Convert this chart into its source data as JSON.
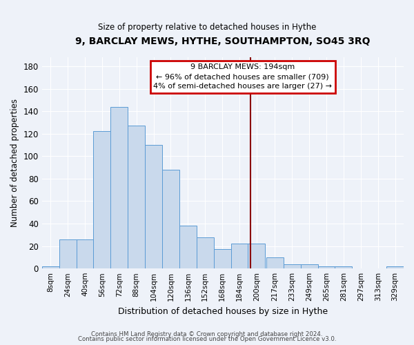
{
  "title": "9, BARCLAY MEWS, HYTHE, SOUTHAMPTON, SO45 3RQ",
  "subtitle": "Size of property relative to detached houses in Hythe",
  "xlabel": "Distribution of detached houses by size in Hythe",
  "ylabel": "Number of detached properties",
  "bar_labels": [
    "8sqm",
    "24sqm",
    "40sqm",
    "56sqm",
    "72sqm",
    "88sqm",
    "104sqm",
    "120sqm",
    "136sqm",
    "152sqm",
    "168sqm",
    "184sqm",
    "200sqm",
    "217sqm",
    "233sqm",
    "249sqm",
    "265sqm",
    "281sqm",
    "297sqm",
    "313sqm",
    "329sqm"
  ],
  "bar_values": [
    2,
    26,
    26,
    122,
    144,
    127,
    110,
    88,
    38,
    28,
    17,
    22,
    22,
    10,
    4,
    4,
    2,
    2,
    0,
    0,
    2
  ],
  "bar_color": "#c9d9ec",
  "bar_edge_color": "#5b9bd5",
  "ylim": [
    0,
    188
  ],
  "yticks": [
    0,
    20,
    40,
    60,
    80,
    100,
    120,
    140,
    160,
    180
  ],
  "vline_x": 194,
  "vline_color": "#8b0000",
  "annotation_title": "9 BARCLAY MEWS: 194sqm",
  "annotation_line1": "← 96% of detached houses are smaller (709)",
  "annotation_line2": "4% of semi-detached houses are larger (27) →",
  "annotation_box_color": "#cc0000",
  "footer1": "Contains HM Land Registry data © Crown copyright and database right 2024.",
  "footer2": "Contains public sector information licensed under the Open Government Licence v3.0.",
  "background_color": "#eef2f9",
  "grid_color": "#ffffff"
}
